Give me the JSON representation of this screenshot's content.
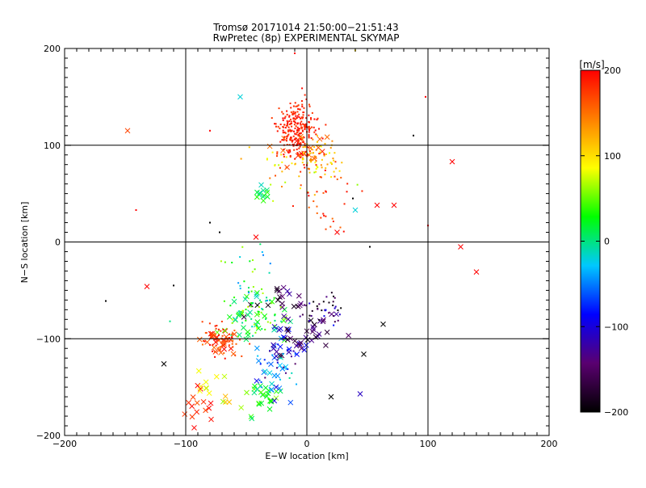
{
  "figure": {
    "title_line1": "Tromsø 20171014 21:50:00−21:51:43",
    "title_line2": "RwPretec (8p) EXPERIMENTAL SKYMAP"
  },
  "chart_data": {
    "type": "scatter",
    "xlabel": "E−W location [km]",
    "ylabel": "N−S location [km]",
    "xlim": [
      -200,
      200
    ],
    "ylim": [
      -200,
      200
    ],
    "x_ticks": [
      -200,
      -100,
      0,
      100,
      200
    ],
    "y_ticks": [
      -200,
      -100,
      0,
      100,
      200
    ],
    "x_tick_labels": [
      "−200",
      "−100",
      "0",
      "100",
      "200"
    ],
    "y_tick_labels": [
      "200",
      "100",
      "0",
      "−100",
      "−200"
    ],
    "grid": true,
    "colorbar": {
      "label": "[m/s]",
      "range": [
        -200,
        200
      ],
      "ticks": [
        200,
        100,
        0,
        -100,
        -200
      ],
      "tick_labels": [
        "200",
        "100",
        "0",
        "−100",
        "−200"
      ],
      "colors": [
        "#000000",
        "#5a0070",
        "#0000ff",
        "#00c8ff",
        "#00ff00",
        "#ffff00",
        "#ff8000",
        "#ff0000"
      ]
    },
    "series": [
      {
        "marker": "cross",
        "clusters": [
          {
            "cx": -90,
            "cy": -170,
            "sx": 6,
            "sy": 12,
            "n": 14,
            "v": [
              160,
              200
            ]
          },
          {
            "cx": -70,
            "cy": -105,
            "sx": 7,
            "sy": 8,
            "n": 28,
            "v": [
              150,
              200
            ]
          },
          {
            "cx": -75,
            "cy": -150,
            "sx": 10,
            "sy": 12,
            "n": 14,
            "v": [
              60,
              120
            ]
          },
          {
            "cx": -45,
            "cy": -80,
            "sx": 12,
            "sy": 12,
            "n": 35,
            "v": [
              -20,
              60
            ]
          },
          {
            "cx": -35,
            "cy": -160,
            "sx": 8,
            "sy": 10,
            "n": 25,
            "v": [
              0,
              60
            ]
          },
          {
            "cx": -25,
            "cy": -130,
            "sx": 8,
            "sy": 15,
            "n": 25,
            "v": [
              -100,
              0
            ]
          },
          {
            "cx": -15,
            "cy": -100,
            "sx": 8,
            "sy": 12,
            "n": 25,
            "v": [
              -180,
              -80
            ]
          },
          {
            "cx": 10,
            "cy": -90,
            "sx": 10,
            "sy": 12,
            "n": 25,
            "v": [
              -200,
              -120
            ]
          },
          {
            "cx": -38,
            "cy": 50,
            "sx": 4,
            "sy": 5,
            "n": 12,
            "v": [
              -20,
              40
            ]
          },
          {
            "cx": -25,
            "cy": -60,
            "sx": 15,
            "sy": 10,
            "n": 20,
            "v": [
              -200,
              -100
            ]
          },
          {
            "cx": -10,
            "cy": 95,
            "sx": 12,
            "sy": 8,
            "n": 18,
            "v": [
              120,
              200
            ]
          }
        ]
      },
      {
        "marker": "dot",
        "clusters": [
          {
            "cx": -8,
            "cy": 115,
            "sx": 8,
            "sy": 15,
            "n": 260,
            "v": [
              170,
              200
            ]
          },
          {
            "cx": 10,
            "cy": 90,
            "sx": 10,
            "sy": 10,
            "n": 60,
            "v": [
              80,
              150
            ]
          },
          {
            "cx": -10,
            "cy": 75,
            "sx": 25,
            "sy": 15,
            "n": 40,
            "v": [
              60,
              200
            ]
          },
          {
            "cx": 15,
            "cy": 35,
            "sx": 10,
            "sy": 20,
            "n": 30,
            "v": [
              150,
              200
            ]
          },
          {
            "cx": -45,
            "cy": -70,
            "sx": 12,
            "sy": 15,
            "n": 60,
            "v": [
              -20,
              80
            ]
          },
          {
            "cx": -70,
            "cy": -100,
            "sx": 8,
            "sy": 10,
            "n": 50,
            "v": [
              150,
              200
            ]
          },
          {
            "cx": 10,
            "cy": -70,
            "sx": 12,
            "sy": 8,
            "n": 40,
            "v": [
              -200,
              -80
            ]
          },
          {
            "cx": -20,
            "cy": -130,
            "sx": 10,
            "sy": 15,
            "n": 30,
            "v": [
              -150,
              0
            ]
          },
          {
            "cx": -50,
            "cy": -30,
            "sx": 15,
            "sy": 15,
            "n": 20,
            "v": [
              -50,
              80
            ]
          }
        ]
      }
    ],
    "outliers": [
      {
        "x": -148,
        "y": 115,
        "v": 170,
        "m": "cross"
      },
      {
        "x": -55,
        "y": 150,
        "v": -20,
        "m": "cross"
      },
      {
        "x": 120,
        "y": 83,
        "v": 200,
        "m": "cross"
      },
      {
        "x": 127,
        "y": -5,
        "v": 200,
        "m": "cross"
      },
      {
        "x": 140,
        "y": -31,
        "v": 200,
        "m": "cross"
      },
      {
        "x": -132,
        "y": -46,
        "v": 200,
        "m": "cross"
      },
      {
        "x": 63,
        "y": -85,
        "v": -200,
        "m": "cross"
      },
      {
        "x": 47,
        "y": -116,
        "v": -200,
        "m": "cross"
      },
      {
        "x": 44,
        "y": -157,
        "v": -110,
        "m": "cross"
      },
      {
        "x": 72,
        "y": 38,
        "v": 200,
        "m": "cross"
      },
      {
        "x": 58,
        "y": 38,
        "v": 200,
        "m": "cross"
      },
      {
        "x": -118,
        "y": -126,
        "v": -200,
        "m": "cross"
      },
      {
        "x": -42,
        "y": 5,
        "v": 200,
        "m": "cross"
      },
      {
        "x": 25,
        "y": 10,
        "v": 200,
        "m": "cross"
      },
      {
        "x": 40,
        "y": 33,
        "v": -20,
        "m": "cross"
      },
      {
        "x": 20,
        "y": -160,
        "v": -200,
        "m": "cross"
      },
      {
        "x": -93,
        "y": -192,
        "v": 200,
        "m": "cross"
      },
      {
        "x": -166,
        "y": -61,
        "v": -200,
        "m": "dot"
      },
      {
        "x": -141,
        "y": 33,
        "v": 200,
        "m": "dot"
      },
      {
        "x": -80,
        "y": 115,
        "v": 200,
        "m": "dot"
      },
      {
        "x": -80,
        "y": 20,
        "v": -200,
        "m": "dot"
      },
      {
        "x": -72,
        "y": 10,
        "v": -200,
        "m": "dot"
      },
      {
        "x": 88,
        "y": 110,
        "v": -200,
        "m": "dot"
      },
      {
        "x": 98,
        "y": 150,
        "v": 200,
        "m": "dot"
      },
      {
        "x": 100,
        "y": 17,
        "v": 200,
        "m": "dot"
      },
      {
        "x": 52,
        "y": -5,
        "v": -200,
        "m": "dot"
      },
      {
        "x": -10,
        "y": 195,
        "v": 200,
        "m": "dot"
      },
      {
        "x": 40,
        "y": 198,
        "v": 100,
        "m": "dot"
      },
      {
        "x": -110,
        "y": -45,
        "v": -200,
        "m": "dot"
      },
      {
        "x": -113,
        "y": -82,
        "v": 0,
        "m": "dot"
      },
      {
        "x": 38,
        "y": 45,
        "v": -200,
        "m": "dot"
      }
    ]
  }
}
